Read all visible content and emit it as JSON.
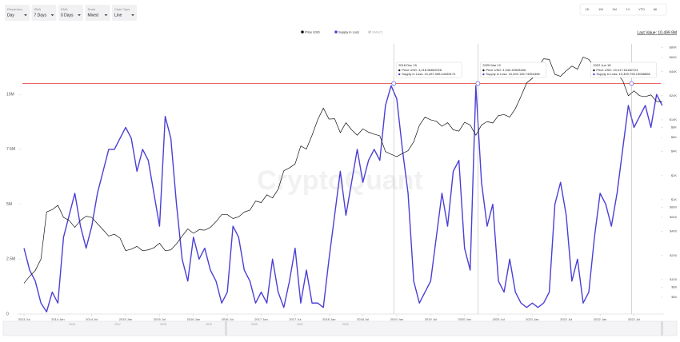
{
  "toolbar": {
    "controls": [
      {
        "label": "Resolution",
        "value": "Day"
      },
      {
        "label": "SMA",
        "value": "7 Days"
      },
      {
        "label": "EMA",
        "value": "0 Days"
      },
      {
        "label": "Scale",
        "value": "Mixed"
      },
      {
        "label": "Chart Type",
        "value": "Line"
      }
    ],
    "range_buttons": [
      "1D",
      "1W",
      "1M",
      "1Y",
      "YTD",
      "All"
    ]
  },
  "chart_data": {
    "type": "line",
    "watermark": "CryptoQuant",
    "last_value": "Last Value: 10,499.9M",
    "sma_legend": "SMA(7)",
    "x": [
      "2013 Jul",
      "2013 Aug",
      "2013 Sep",
      "2013 Oct",
      "2013 Nov",
      "2013 Dec",
      "2014 Jan",
      "2014 Feb",
      "2014 Mar",
      "2014 Apr",
      "2014 May",
      "2014 Jun",
      "2014 Jul",
      "2014 Aug",
      "2014 Sep",
      "2014 Oct",
      "2014 Nov",
      "2014 Dec",
      "2015 Jan",
      "2015 Feb",
      "2015 Mar",
      "2015 Apr",
      "2015 May",
      "2015 Jun",
      "2015 Jul",
      "2015 Aug",
      "2015 Sep",
      "2015 Oct",
      "2015 Nov",
      "2015 Dec",
      "2016 Jan",
      "2016 Feb",
      "2016 Mar",
      "2016 Apr",
      "2016 May",
      "2016 Jun",
      "2016 Jul",
      "2016 Aug",
      "2016 Sep",
      "2016 Oct",
      "2016 Nov",
      "2016 Dec",
      "2017 Jan",
      "2017 Feb",
      "2017 Mar",
      "2017 Apr",
      "2017 May",
      "2017 Jun",
      "2017 Jul",
      "2017 Aug",
      "2017 Sep",
      "2017 Oct",
      "2017 Nov",
      "2017 Dec",
      "2018 Jan",
      "2018 Feb",
      "2018 Mar",
      "2018 Apr",
      "2018 May",
      "2018 Jun",
      "2018 Jul",
      "2018 Aug",
      "2018 Sep",
      "2018 Oct",
      "2018 Nov",
      "2018 Dec",
      "2019 Jan",
      "2019 Feb",
      "2019 Mar",
      "2019 Apr",
      "2019 May",
      "2019 Jun",
      "2019 Jul",
      "2019 Aug",
      "2019 Sep",
      "2019 Oct",
      "2019 Nov",
      "2019 Dec",
      "2020 Jan",
      "2020 Feb",
      "2020 Mar",
      "2020 Apr",
      "2020 May",
      "2020 Jun",
      "2020 Jul",
      "2020 Aug",
      "2020 Sep",
      "2020 Oct",
      "2020 Nov",
      "2020 Dec",
      "2021 Jan",
      "2021 Feb",
      "2021 Mar",
      "2021 Apr",
      "2021 May",
      "2021 Jun",
      "2021 Jul",
      "2021 Aug",
      "2021 Sep",
      "2021 Oct",
      "2021 Nov",
      "2021 Dec",
      "2022 Jan",
      "2022 Feb",
      "2022 Mar",
      "2022 Apr",
      "2022 May",
      "2022 Jun",
      "2022 Jul",
      "2022 Aug",
      "2022 Sep",
      "2022 Oct",
      "2022 Nov",
      "2022 Dec"
    ],
    "xticks": [
      "2013 Jul",
      "2014 Jan",
      "2014 Jul",
      "2015 Jan",
      "2015 Jul",
      "2016 Jan",
      "2016 Jul",
      "2017 Jan",
      "2017 Jul",
      "2018 Jan",
      "2018 Jul",
      "2019 Jan",
      "2019 Jul",
      "2020 Jan",
      "2020 Jul",
      "2021 Jan",
      "2021 Jul",
      "2022 Jan",
      "2022 Jul"
    ],
    "series": [
      {
        "name": "Price USD",
        "color": "#111111",
        "axis": "y2",
        "values": [
          90,
          110,
          130,
          180,
          700,
          750,
          850,
          600,
          550,
          450,
          550,
          620,
          600,
          500,
          420,
          350,
          370,
          330,
          230,
          240,
          260,
          230,
          235,
          250,
          285,
          230,
          235,
          280,
          350,
          430,
          380,
          420,
          415,
          450,
          530,
          650,
          650,
          580,
          610,
          700,
          740,
          960,
          920,
          1150,
          1050,
          1350,
          2300,
          2500,
          2800,
          4700,
          4300,
          6400,
          10000,
          14000,
          10200,
          10300,
          6900,
          9200,
          7500,
          6400,
          7700,
          7000,
          6600,
          6300,
          4000,
          3700,
          3450,
          3800,
          4100,
          5300,
          8500,
          10800,
          10000,
          9600,
          8300,
          9200,
          7500,
          7200,
          9300,
          8600,
          6400,
          8600,
          9500,
          9100,
          11300,
          11600,
          10800,
          13800,
          19700,
          29000,
          33000,
          45000,
          58000,
          57000,
          37000,
          35000,
          41000,
          47000,
          43000,
          61000,
          57000,
          46000,
          38000,
          43000,
          45000,
          38000,
          31000,
          20000,
          23000,
          20000,
          19500,
          20500,
          17000,
          16800
        ]
      },
      {
        "name": "Supply in Loss",
        "color": "#4b3fd6",
        "values": [
          3000000,
          2000000,
          1500000,
          500000,
          100000,
          1000000,
          500000,
          3500000,
          4500000,
          5500000,
          4000000,
          3000000,
          4000000,
          5500000,
          6500000,
          7500000,
          7500000,
          8000000,
          8500000,
          8000000,
          6500000,
          7500000,
          7000000,
          5500000,
          4000000,
          9000000,
          8000000,
          5000000,
          2500000,
          1500000,
          3500000,
          2500000,
          3000000,
          2000000,
          1500000,
          500000,
          1000000,
          4000000,
          3500000,
          2000000,
          1500000,
          500000,
          1000000,
          500000,
          2500000,
          1000000,
          300000,
          1500000,
          3000000,
          500000,
          2000000,
          500000,
          500000,
          300000,
          2500000,
          4500000,
          6500000,
          4500000,
          6000000,
          7500000,
          6000000,
          7000000,
          7500000,
          7000000,
          9500000,
          10400000,
          9800000,
          7500000,
          5500000,
          1500000,
          500000,
          1000000,
          1500000,
          3500000,
          5500000,
          4000000,
          6500000,
          7000000,
          3000000,
          2000000,
          10400000,
          6000000,
          4000000,
          5000000,
          1500000,
          1000000,
          2500000,
          1000000,
          500000,
          300000,
          500000,
          300000,
          500000,
          1000000,
          5000000,
          6000000,
          4500000,
          1500000,
          2500000,
          500000,
          1000000,
          3500000,
          5500000,
          5000000,
          4000000,
          5500000,
          7500000,
          9500000,
          8500000,
          9000000,
          9500000,
          8500000,
          10000000,
          9500000
        ]
      }
    ],
    "ylim": [
      0,
      12300000
    ],
    "yticks": [
      0,
      {
        "value": 2500000,
        "label": "2.5M"
      },
      {
        "value": 5000000,
        "label": "5M"
      },
      {
        "value": 7500000,
        "label": "7.5M"
      },
      {
        "value": 10000000,
        "label": "10M"
      }
    ],
    "y2lim": [
      37,
      89000
    ],
    "y2log": true,
    "y2ticks": [
      {
        "value": 60,
        "label": "$60"
      },
      {
        "value": 80,
        "label": "$80"
      },
      {
        "value": 100,
        "label": "$100"
      },
      {
        "value": 200,
        "label": "$200"
      },
      {
        "value": 400,
        "label": "$400"
      },
      {
        "value": 600,
        "label": "$600"
      },
      {
        "value": 800,
        "label": "$800"
      },
      {
        "value": 1000,
        "label": "$1K"
      },
      {
        "value": 2000,
        "label": "$2K"
      },
      {
        "value": 4000,
        "label": "$4K"
      },
      {
        "value": 6000,
        "label": "$6K"
      },
      {
        "value": 8000,
        "label": "$8K"
      },
      {
        "value": 10000,
        "label": "$10K"
      },
      {
        "value": 20000,
        "label": "$20K"
      },
      {
        "value": 40000,
        "label": "$40K"
      },
      {
        "value": 60000,
        "label": "$60K"
      },
      {
        "value": 80000,
        "label": "$80K"
      }
    ],
    "reference_line": {
      "value": 10500000,
      "color": "#e0322f"
    },
    "annotations": [
      {
        "date": "2018 Dec 15",
        "lines": [
          "Price USD: 3,218.96802028",
          "Supply in Loss: 10,457,058.44289174"
        ]
      },
      {
        "date": "2020 Mar 12",
        "lines": [
          "Price USD: 4,940.40528406",
          "Supply in Loss: 10,492,135.74052398"
        ]
      },
      {
        "date": "2022 Jun 18",
        "lines": [
          "Price USD: 19,017.64182724",
          "Supply in Loss: 10,499,795.13058808"
        ]
      }
    ],
    "navigator_labels": [
      "2016",
      "2017",
      "2018",
      "2019",
      "2020",
      "2021",
      "2022"
    ]
  }
}
